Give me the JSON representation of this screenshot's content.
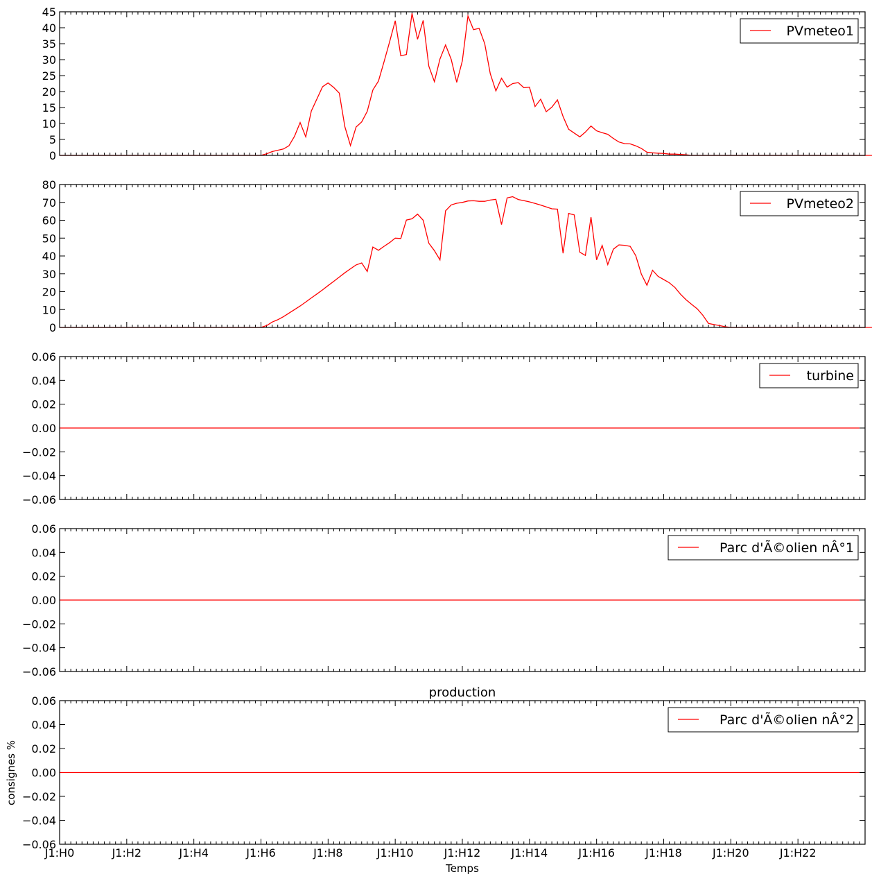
{
  "chart_data": [
    {
      "type": "line",
      "title": "",
      "ylim": [
        0,
        45
      ],
      "yticks": [
        "0",
        "5",
        "10",
        "15",
        "20",
        "25",
        "30",
        "35",
        "40",
        "45"
      ],
      "legend": "top-right",
      "series": [
        {
          "name": "PVmeteo1",
          "color": "#ff0000",
          "values": [
            0,
            0,
            0,
            0,
            0,
            0,
            0,
            0,
            0,
            0,
            0,
            0,
            0,
            0,
            0,
            0,
            0,
            0,
            0,
            0,
            0,
            0,
            0,
            0,
            0,
            0,
            0,
            0,
            0,
            0,
            0,
            0,
            0,
            0,
            0,
            0,
            0,
            0.5,
            1.2,
            1.6,
            2,
            3,
            6,
            10.3,
            5.8,
            13.9,
            17.7,
            21.5,
            22.7,
            21.3,
            19.5,
            9,
            3.1,
            8.9,
            10.5,
            13.8,
            20.5,
            23.3,
            29.3,
            35.6,
            42.2,
            31.2,
            31.6,
            44.5,
            36.4,
            42.3,
            28,
            23.1,
            30.2,
            34.6,
            30.1,
            22.9,
            29.6,
            43.7,
            39.4,
            39.8,
            35,
            25.6,
            20.2,
            24.2,
            21.4,
            22.5,
            22.8,
            21.2,
            21.4,
            15.3,
            17.6,
            13.7,
            15.1,
            17.4,
            12.2,
            8.2,
            7,
            5.8,
            7.3,
            9.2,
            7.7,
            7.1,
            6.6,
            5.3,
            4.2,
            3.7,
            3.6,
            3,
            2.2,
            1,
            0.8,
            0.7,
            0.6,
            0.4,
            0.4,
            0.3,
            0.2,
            0,
            0,
            0,
            0,
            0,
            0,
            0,
            0,
            0,
            0,
            0,
            0,
            0,
            0,
            0,
            0,
            0,
            0,
            0,
            0,
            0,
            0,
            0,
            0,
            0,
            0,
            0,
            0,
            0,
            0,
            0,
            0,
            0,
            0
          ]
        }
      ]
    },
    {
      "type": "line",
      "title": "",
      "ylim": [
        0,
        80
      ],
      "yticks": [
        "0",
        "10",
        "20",
        "30",
        "40",
        "50",
        "60",
        "70",
        "80"
      ],
      "legend": "top-right",
      "series": [
        {
          "name": "PVmeteo2",
          "color": "#ff0000",
          "values": [
            0,
            0,
            0,
            0,
            0,
            0,
            0,
            0,
            0,
            0,
            0,
            0,
            0,
            0,
            0,
            0,
            0,
            0,
            0,
            0,
            0,
            0,
            0,
            0,
            0,
            0,
            0,
            0,
            0,
            0,
            0,
            0,
            0,
            0,
            0,
            0,
            0,
            1,
            3,
            4.3,
            6,
            8,
            10,
            12,
            14.2,
            16.5,
            18.7,
            21,
            23.4,
            25.8,
            28.2,
            30.6,
            32.8,
            35,
            36.1,
            31.3,
            45,
            43.2,
            45.4,
            47.5,
            50,
            49.8,
            60.1,
            60.8,
            63.4,
            60,
            47.2,
            43,
            37.8,
            65.3,
            68.6,
            69.5,
            70,
            70.8,
            70.9,
            70.6,
            70.6,
            71.3,
            71.7,
            57.6,
            72.5,
            73.2,
            71.6,
            71,
            70.3,
            69.4,
            68.5,
            67.5,
            66.4,
            66.2,
            41.5,
            63.8,
            63,
            42.1,
            40.3,
            61.7,
            37.8,
            45.9,
            35.2,
            43.8,
            46.2,
            46,
            45.4,
            40.2,
            29.9,
            23.6,
            32,
            28.6,
            26.8,
            25,
            22.4,
            18.6,
            15.5,
            12.9,
            10.4,
            6.8,
            2.2,
            1.6,
            1,
            0.4,
            0,
            0,
            0,
            0,
            0,
            0,
            0,
            0,
            0,
            0,
            0,
            0,
            0,
            0,
            0,
            0,
            0,
            0,
            0,
            0,
            0,
            0,
            0,
            0,
            0,
            0,
            0,
            0,
            0,
            0,
            0,
            0,
            0,
            0
          ]
        }
      ]
    },
    {
      "type": "line",
      "title": "",
      "ylim": [
        -0.06,
        0.06
      ],
      "yticks": [
        "−0.06",
        "−0.04",
        "−0.02",
        "0.00",
        "0.02",
        "0.04",
        "0.06"
      ],
      "legend": "top-right",
      "series": [
        {
          "name": "turbine",
          "color": "#ff0000",
          "values": [
            0,
            0
          ],
          "x": [
            0,
            143
          ]
        }
      ]
    },
    {
      "type": "line",
      "title": "",
      "ylim": [
        -0.06,
        0.06
      ],
      "yticks": [
        "−0.06",
        "−0.04",
        "−0.02",
        "0.00",
        "0.02",
        "0.04",
        "0.06"
      ],
      "legend": "top-right",
      "series": [
        {
          "name": "Parc d'Ã©olien nÂ°1",
          "color": "#ff0000",
          "values": [
            0,
            0
          ],
          "x": [
            0,
            143
          ]
        }
      ]
    },
    {
      "type": "line",
      "title": "production",
      "xlabel": "Temps",
      "ylabel": "consignes %",
      "ylim": [
        -0.06,
        0.06
      ],
      "yticks": [
        "−0.06",
        "−0.04",
        "−0.02",
        "0.00",
        "0.02",
        "0.04",
        "0.06"
      ],
      "xticks": [
        "J1:H0",
        "J1:H2",
        "J1:H4",
        "J1:H6",
        "J1:H8",
        "J1:H10",
        "J1:H12",
        "J1:H14",
        "J1:H16",
        "J1:H18",
        "J1:H20",
        "J1:H22"
      ],
      "legend": "top-right",
      "series": [
        {
          "name": "Parc d'Ã©olien nÂ°2",
          "color": "#ff0000",
          "values": [
            0,
            0
          ],
          "x": [
            0,
            143
          ]
        }
      ]
    }
  ],
  "x_axis": {
    "samples_per_hour": 6,
    "range": [
      0,
      144
    ]
  }
}
